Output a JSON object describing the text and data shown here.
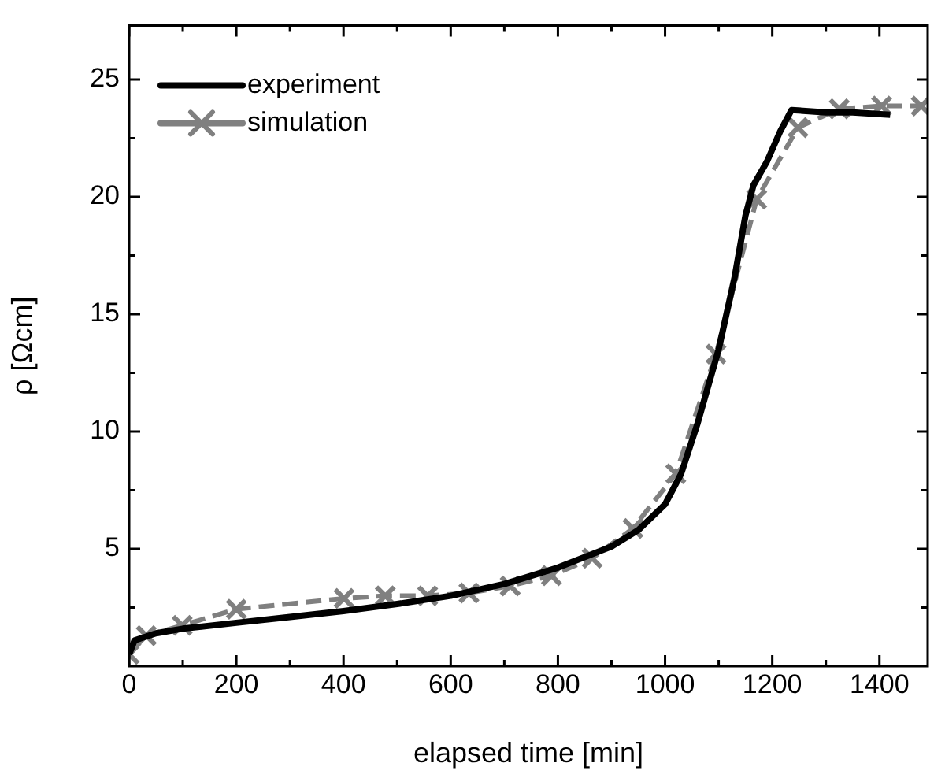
{
  "chart_data": {
    "type": "line",
    "xlabel": "elapsed time [min]",
    "ylabel": "ρ [Ωcm]",
    "xlim": [
      0,
      1490
    ],
    "ylim": [
      0,
      27.3
    ],
    "xticks": [
      0,
      {
        "value": 100,
        "label": null
      },
      200,
      {
        "value": 300,
        "label": null
      },
      400,
      {
        "value": 500,
        "label": null
      },
      600,
      {
        "value": 700,
        "label": null
      },
      800,
      {
        "value": 900,
        "label": null
      },
      1000,
      {
        "value": 1100,
        "label": null
      },
      1200,
      {
        "value": 1300,
        "label": null
      },
      1400
    ],
    "yticks": [
      {
        "value": 2.5,
        "label": null
      },
      5,
      {
        "value": 7.5,
        "label": null
      },
      10,
      {
        "value": 12.5,
        "label": null
      },
      15,
      {
        "value": 17.5,
        "label": null
      },
      20,
      {
        "value": 22.5,
        "label": null
      },
      25
    ],
    "grid": false,
    "legend": "top left",
    "series": [
      {
        "name": "experiment",
        "color": "#000000",
        "marker": "none",
        "line_style": "solid",
        "x": [
          0,
          10,
          50,
          100,
          200,
          300,
          400,
          500,
          600,
          700,
          800,
          900,
          950,
          1000,
          1030,
          1060,
          1100,
          1130,
          1150,
          1165,
          1190,
          1215,
          1236,
          1300,
          1350,
          1420
        ],
        "values": [
          0.5,
          1.1,
          1.4,
          1.6,
          1.85,
          2.1,
          2.35,
          2.65,
          3.0,
          3.5,
          4.2,
          5.1,
          5.8,
          6.9,
          8.2,
          10.3,
          13.5,
          16.6,
          19.2,
          20.5,
          21.5,
          22.8,
          23.7,
          23.6,
          23.6,
          23.5
        ]
      },
      {
        "name": "simulation",
        "color": "#808080",
        "marker": "cross",
        "line_style": "dashed",
        "x": [
          0,
          32,
          99,
          200,
          401,
          478,
          557,
          634,
          711,
          788,
          864,
          940,
          1020,
          1095,
          1171,
          1248,
          1325,
          1404,
          1478
        ],
        "values": [
          0.5,
          1.3,
          1.74,
          2.43,
          2.89,
          3.0,
          3.0,
          3.12,
          3.42,
          3.86,
          4.6,
          5.87,
          8.2,
          13.3,
          19.9,
          22.95,
          23.75,
          23.87,
          23.87
        ]
      }
    ]
  }
}
